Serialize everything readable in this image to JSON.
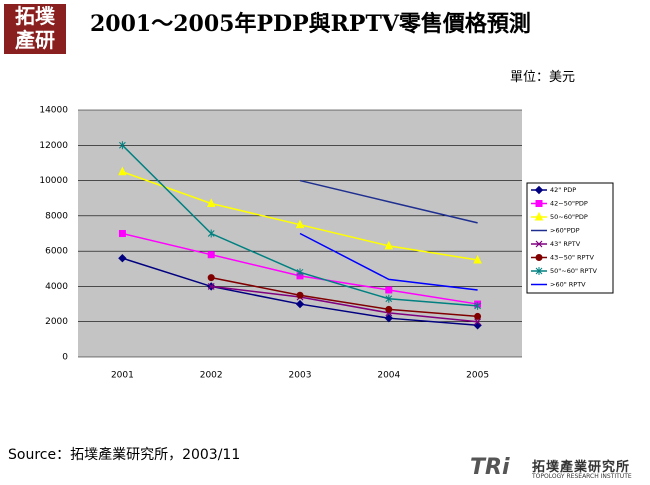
{
  "header": {
    "title": "2001～2005年PDP與RPTV零售價格預測",
    "logo_lines": [
      "拓墣",
      "產研"
    ]
  },
  "unit": "單位：美元",
  "chart_data": {
    "type": "line",
    "categories": [
      "2001",
      "2002",
      "2003",
      "2004",
      "2005"
    ],
    "ylim": [
      0,
      14000
    ],
    "yticks": [
      0,
      2000,
      4000,
      6000,
      8000,
      10000,
      12000,
      14000
    ],
    "grid": true,
    "legend": "right",
    "series": [
      {
        "name": "42\" PDP",
        "color": "#000080",
        "marker": "diamond",
        "values": [
          5600,
          4000,
          3000,
          2200,
          1800
        ]
      },
      {
        "name": "42~50\"PDP",
        "color": "#ff00ff",
        "marker": "square",
        "values": [
          7000,
          5800,
          4600,
          3800,
          3000
        ]
      },
      {
        "name": "50~60\"PDP",
        "color": "#ffff00",
        "marker": "triangle",
        "values": [
          10500,
          8700,
          7500,
          6300,
          5500
        ]
      },
      {
        "name": ">60\"PDP",
        "color": "#1f2f8f",
        "marker": "none",
        "values": [
          null,
          null,
          10000,
          8800,
          7600
        ]
      },
      {
        "name": "43\" RPTV",
        "color": "#800080",
        "marker": "x",
        "values": [
          null,
          4000,
          3400,
          2500,
          2000
        ]
      },
      {
        "name": "43~50\" RPTV",
        "color": "#800000",
        "marker": "circle",
        "values": [
          null,
          4500,
          3500,
          2700,
          2300
        ]
      },
      {
        "name": "50\"~60\" RPTV",
        "color": "#008080",
        "marker": "star",
        "values": [
          12000,
          7000,
          4800,
          3300,
          2900
        ]
      },
      {
        "name": ">60\" RPTV",
        "color": "#0000ff",
        "marker": "none",
        "values": [
          null,
          null,
          7000,
          4400,
          3800
        ]
      }
    ]
  },
  "source": "Source：拓墣產業研究所，2003/11",
  "footer_logo": {
    "mark": "TRi",
    "name_zh": "拓墣產業研究所",
    "name_en": "TOPOLOGY RESEARCH INSTITUTE"
  }
}
